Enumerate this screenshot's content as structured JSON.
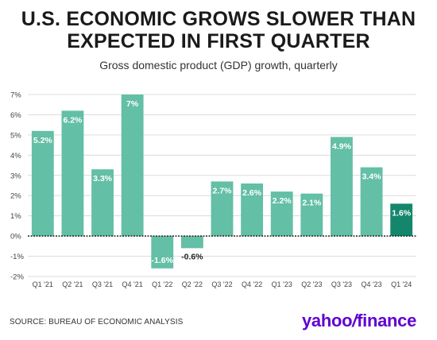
{
  "header": {
    "title_line1": "U.S. ECONOMIC GROWS SLOWER THAN",
    "title_line2": "EXPECTED IN FIRST QUARTER",
    "subtitle": "Gross domestic product (GDP) growth, quarterly"
  },
  "footer": {
    "source": "SOURCE: BUREAU OF ECONOMIC ANALYSIS",
    "brand_left": "yahoo",
    "brand_slash": "/",
    "brand_right": "finance"
  },
  "colors": {
    "bar": "#63bfa5",
    "bar_highlight": "#14866b",
    "grid": "#dcdcdc",
    "zero_line": "#222222",
    "label_text": "#ffffff",
    "negative_label_text": "#222222",
    "brand": "#6001d2"
  },
  "chart_data": {
    "type": "bar",
    "title": "U.S. ECONOMIC GROWS SLOWER THAN EXPECTED IN FIRST QUARTER",
    "subtitle": "Gross domestic product (GDP) growth, quarterly",
    "categories": [
      "Q1 '21",
      "Q2 '21",
      "Q3 '21",
      "Q4 '21",
      "Q1 '22",
      "Q2 '22",
      "Q3 '22",
      "Q4 '22",
      "Q1 '23",
      "Q2 '23",
      "Q3 '23",
      "Q4 '23",
      "Q1 '24"
    ],
    "values": [
      5.2,
      6.2,
      3.3,
      7,
      -1.6,
      -0.6,
      2.7,
      2.6,
      2.2,
      2.1,
      4.9,
      3.4,
      1.6
    ],
    "value_labels": [
      "5.2%",
      "6.2%",
      "3.3%",
      "7%",
      "-1.6%",
      "-0.6%",
      "2.7%",
      "2.6%",
      "2.2%",
      "2.1%",
      "4.9%",
      "3.4%",
      "1.6%"
    ],
    "highlight_index": 12,
    "yticks": [
      -2,
      -1,
      0,
      1,
      2,
      3,
      4,
      5,
      6,
      7
    ],
    "ytick_labels": [
      "-2%",
      "-1%",
      "0%",
      "1%",
      "2%",
      "3%",
      "4%",
      "5%",
      "6%",
      "7%"
    ],
    "ylim": [
      -2,
      7
    ],
    "grid": true,
    "xlabel": "",
    "ylabel": ""
  }
}
